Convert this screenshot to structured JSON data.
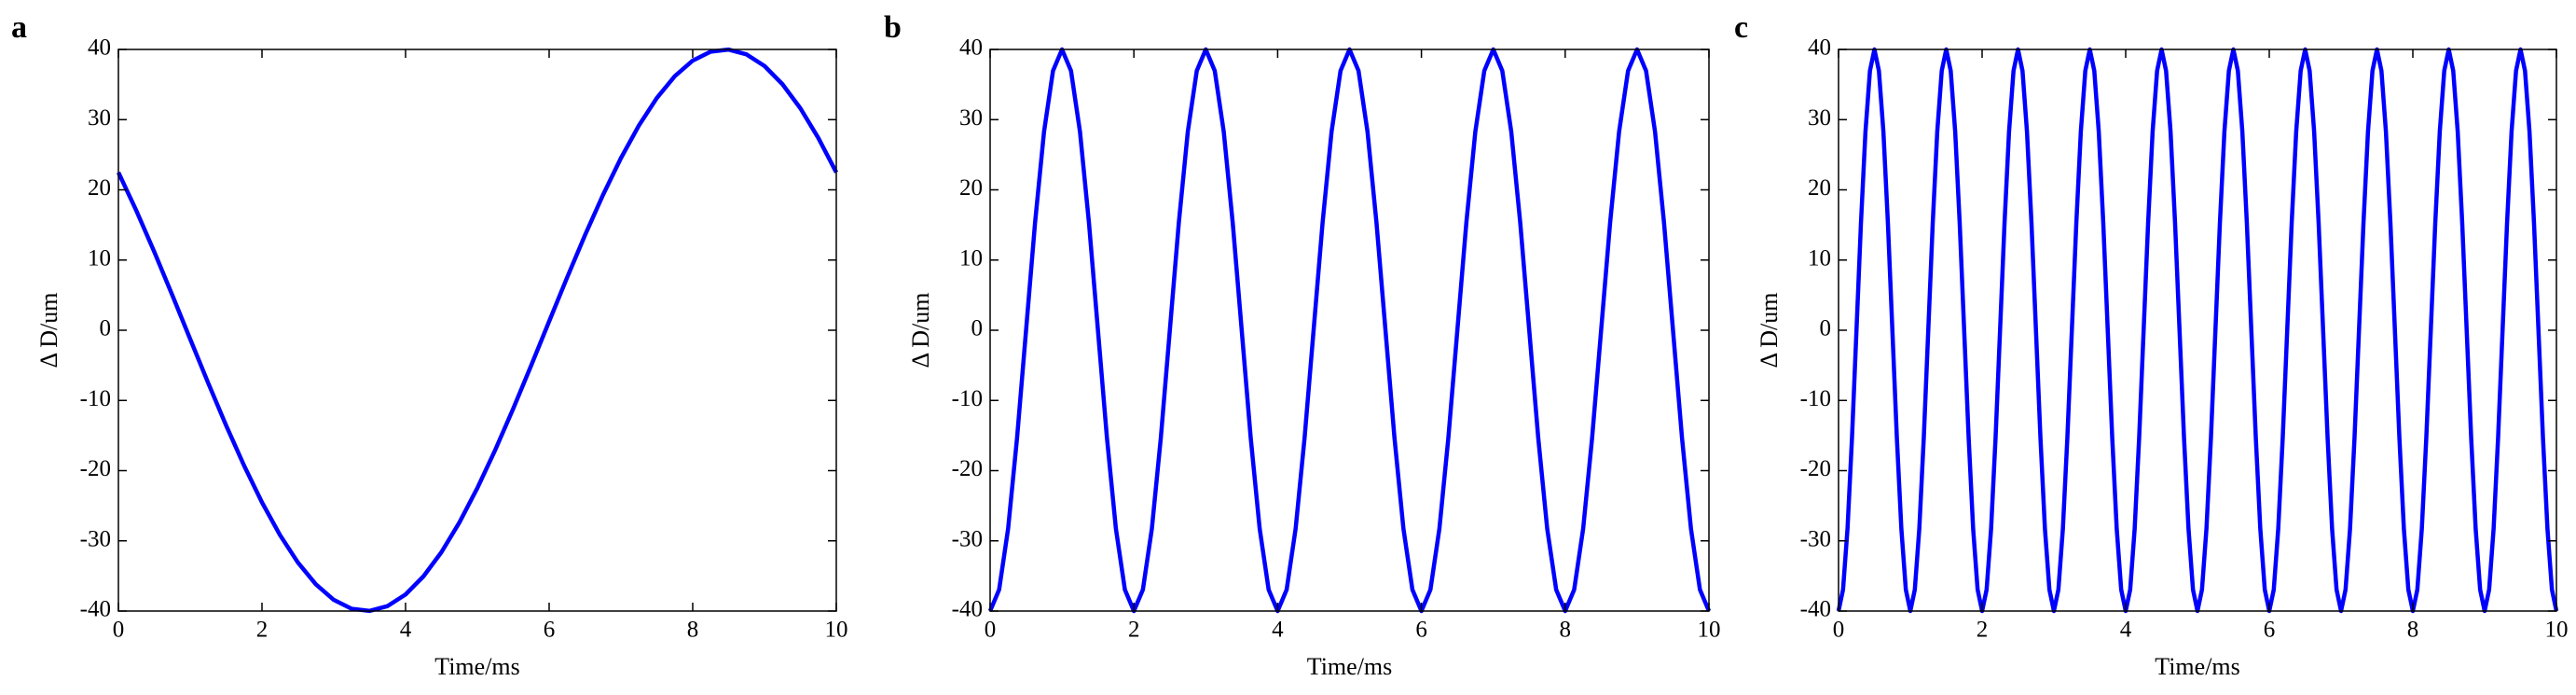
{
  "chart_data": [
    {
      "type": "line",
      "label": "a",
      "x_label": "Time/ms",
      "y_label": "Δ D/um",
      "color": "#0000ff",
      "xlim": [
        0,
        10
      ],
      "ylim": [
        -40,
        40
      ],
      "xticks": [
        0,
        2,
        4,
        6,
        8,
        10
      ],
      "yticks": [
        -40,
        -30,
        -20,
        -10,
        0,
        10,
        20,
        30,
        40
      ],
      "x": [
        0,
        0.25,
        0.5,
        0.75,
        1,
        1.25,
        1.5,
        1.75,
        2,
        2.25,
        2.5,
        2.75,
        3,
        3.25,
        3.5,
        3.75,
        4,
        4.25,
        4.5,
        4.75,
        5,
        5.25,
        5.5,
        5.75,
        6,
        6.25,
        6.5,
        6.75,
        7,
        7.25,
        7.5,
        7.75,
        8,
        8.25,
        8.5,
        8.75,
        9,
        9.25,
        9.5,
        9.75,
        10
      ],
      "values": [
        22.48,
        17.03,
        11.16,
        5.01,
        -1.26,
        -7.5,
        -13.55,
        -19.27,
        -24.52,
        -29.16,
        -33.08,
        -36.19,
        -38.41,
        -39.68,
        -39.98,
        -39.29,
        -37.64,
        -35.05,
        -31.61,
        -27.38,
        -22.48,
        -17.03,
        -11.16,
        -5.01,
        1.26,
        7.5,
        13.55,
        19.27,
        24.52,
        29.16,
        33.08,
        36.19,
        38.41,
        39.68,
        39.98,
        39.29,
        37.64,
        35.05,
        31.61,
        27.38,
        22.48
      ]
    },
    {
      "type": "line",
      "label": "b",
      "x_label": "Time/ms",
      "y_label": "Δ D/um",
      "color": "#0000ff",
      "xlim": [
        0,
        10
      ],
      "ylim": [
        -40,
        40
      ],
      "xticks": [
        0,
        2,
        4,
        6,
        8,
        10
      ],
      "yticks": [
        -40,
        -30,
        -20,
        -10,
        0,
        10,
        20,
        30,
        40
      ],
      "x": [
        0,
        0.125,
        0.25,
        0.375,
        0.5,
        0.625,
        0.75,
        0.875,
        1,
        1.125,
        1.25,
        1.375,
        1.5,
        1.625,
        1.75,
        1.875,
        2,
        2.125,
        2.25,
        2.375,
        2.5,
        2.625,
        2.75,
        2.875,
        3,
        3.125,
        3.25,
        3.375,
        3.5,
        3.625,
        3.75,
        3.875,
        4,
        4.125,
        4.25,
        4.375,
        4.5,
        4.625,
        4.75,
        4.875,
        5,
        5.125,
        5.25,
        5.375,
        5.5,
        5.625,
        5.75,
        5.875,
        6,
        6.125,
        6.25,
        6.375,
        6.5,
        6.625,
        6.75,
        6.875,
        7,
        7.125,
        7.25,
        7.375,
        7.5,
        7.625,
        7.75,
        7.875,
        8,
        8.125,
        8.25,
        8.375,
        8.5,
        8.625,
        8.75,
        8.875,
        9,
        9.125,
        9.25,
        9.375,
        9.5,
        9.625,
        9.75,
        9.875,
        10
      ],
      "values": [
        -40,
        -36.96,
        -28.28,
        -15.31,
        0,
        15.31,
        28.28,
        36.96,
        40,
        36.96,
        28.28,
        15.31,
        0,
        -15.31,
        -28.28,
        -36.96,
        -40,
        -36.96,
        -28.28,
        -15.31,
        0,
        15.31,
        28.28,
        36.96,
        40,
        36.96,
        28.28,
        15.31,
        0,
        -15.31,
        -28.28,
        -36.96,
        -40,
        -36.96,
        -28.28,
        -15.31,
        0,
        15.31,
        28.28,
        36.96,
        40,
        36.96,
        28.28,
        15.31,
        0,
        -15.31,
        -28.28,
        -36.96,
        -40,
        -36.96,
        -28.28,
        -15.31,
        0,
        15.31,
        28.28,
        36.96,
        40,
        36.96,
        28.28,
        15.31,
        0,
        -15.31,
        -28.28,
        -36.96,
        -40,
        -36.96,
        -28.28,
        -15.31,
        0,
        15.31,
        28.28,
        36.96,
        40,
        36.96,
        28.28,
        15.31,
        0,
        -15.31,
        -28.28,
        -36.96,
        -40
      ]
    },
    {
      "type": "line",
      "label": "c",
      "x_label": "Time/ms",
      "y_label": "Δ D/um",
      "color": "#0000ff",
      "xlim": [
        0,
        10
      ],
      "ylim": [
        -40,
        40
      ],
      "xticks": [
        0,
        2,
        4,
        6,
        8,
        10
      ],
      "yticks": [
        -40,
        -30,
        -20,
        -10,
        0,
        10,
        20,
        30,
        40
      ],
      "x": [
        0,
        0.0625,
        0.125,
        0.1875,
        0.25,
        0.3125,
        0.375,
        0.4375,
        0.5,
        0.5625,
        0.625,
        0.6875,
        0.75,
        0.8125,
        0.875,
        0.9375,
        1,
        1.0625,
        1.125,
        1.1875,
        1.25,
        1.3125,
        1.375,
        1.4375,
        1.5,
        1.5625,
        1.625,
        1.6875,
        1.75,
        1.8125,
        1.875,
        1.9375,
        2,
        2.0625,
        2.125,
        2.1875,
        2.25,
        2.3125,
        2.375,
        2.4375,
        2.5,
        2.5625,
        2.625,
        2.6875,
        2.75,
        2.8125,
        2.875,
        2.9375,
        3,
        3.0625,
        3.125,
        3.1875,
        3.25,
        3.3125,
        3.375,
        3.4375,
        3.5,
        3.5625,
        3.625,
        3.6875,
        3.75,
        3.8125,
        3.875,
        3.9375,
        4,
        4.0625,
        4.125,
        4.1875,
        4.25,
        4.3125,
        4.375,
        4.4375,
        4.5,
        4.5625,
        4.625,
        4.6875,
        4.75,
        4.8125,
        4.875,
        4.9375,
        5,
        5.0625,
        5.125,
        5.1875,
        5.25,
        5.3125,
        5.375,
        5.4375,
        5.5,
        5.5625,
        5.625,
        5.6875,
        5.75,
        5.8125,
        5.875,
        5.9375,
        6,
        6.0625,
        6.125,
        6.1875,
        6.25,
        6.3125,
        6.375,
        6.4375,
        6.5,
        6.5625,
        6.625,
        6.6875,
        6.75,
        6.8125,
        6.875,
        6.9375,
        7,
        7.0625,
        7.125,
        7.1875,
        7.25,
        7.3125,
        7.375,
        7.4375,
        7.5,
        7.5625,
        7.625,
        7.6875,
        7.75,
        7.8125,
        7.875,
        7.9375,
        8,
        8.0625,
        8.125,
        8.1875,
        8.25,
        8.3125,
        8.375,
        8.4375,
        8.5,
        8.5625,
        8.625,
        8.6875,
        8.75,
        8.8125,
        8.875,
        8.9375,
        9,
        9.0625,
        9.125,
        9.1875,
        9.25,
        9.3125,
        9.375,
        9.4375,
        9.5,
        9.5625,
        9.625,
        9.6875,
        9.75,
        9.8125,
        9.875,
        9.9375,
        10
      ],
      "values": [
        -40,
        -36.96,
        -28.28,
        -15.31,
        0,
        15.31,
        28.28,
        36.96,
        40,
        36.96,
        28.28,
        15.31,
        0,
        -15.31,
        -28.28,
        -36.96,
        -40,
        -36.96,
        -28.28,
        -15.31,
        0,
        15.31,
        28.28,
        36.96,
        40,
        36.96,
        28.28,
        15.31,
        0,
        -15.31,
        -28.28,
        -36.96,
        -40,
        -36.96,
        -28.28,
        -15.31,
        0,
        15.31,
        28.28,
        36.96,
        40,
        36.96,
        28.28,
        15.31,
        0,
        -15.31,
        -28.28,
        -36.96,
        -40,
        -36.96,
        -28.28,
        -15.31,
        0,
        15.31,
        28.28,
        36.96,
        40,
        36.96,
        28.28,
        15.31,
        0,
        -15.31,
        -28.28,
        -36.96,
        -40,
        -36.96,
        -28.28,
        -15.31,
        0,
        15.31,
        28.28,
        36.96,
        40,
        36.96,
        28.28,
        15.31,
        0,
        -15.31,
        -28.28,
        -36.96,
        -40,
        -36.96,
        -28.28,
        -15.31,
        0,
        15.31,
        28.28,
        36.96,
        40,
        36.96,
        28.28,
        15.31,
        0,
        -15.31,
        -28.28,
        -36.96,
        -40,
        -36.96,
        -28.28,
        -15.31,
        0,
        15.31,
        28.28,
        36.96,
        40,
        36.96,
        28.28,
        15.31,
        0,
        -15.31,
        -28.28,
        -36.96,
        -40,
        -36.96,
        -28.28,
        -15.31,
        0,
        15.31,
        28.28,
        36.96,
        40,
        36.96,
        28.28,
        15.31,
        0,
        -15.31,
        -28.28,
        -36.96,
        -40,
        -36.96,
        -28.28,
        -15.31,
        0,
        15.31,
        28.28,
        36.96,
        40,
        36.96,
        28.28,
        15.31,
        0,
        -15.31,
        -28.28,
        -36.96,
        -40,
        -36.96,
        -28.28,
        -15.31,
        0,
        15.31,
        28.28,
        36.96,
        40,
        36.96,
        28.28,
        15.31,
        0,
        -15.31,
        -28.28,
        -36.96,
        -40
      ]
    }
  ]
}
